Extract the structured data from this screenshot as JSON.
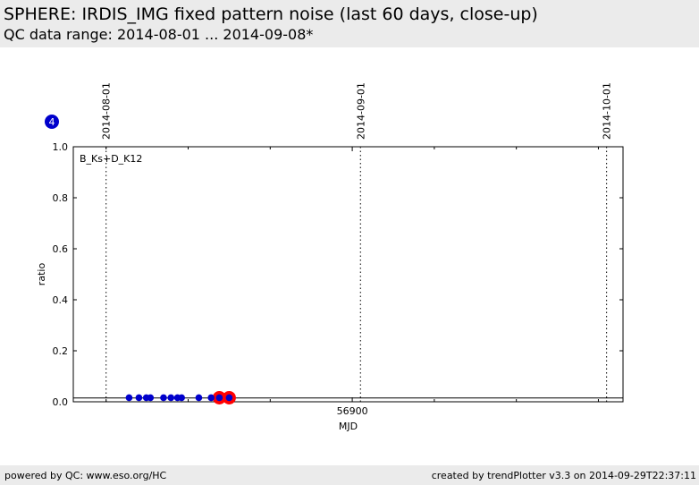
{
  "header": {
    "title": "SPHERE: IRDIS_IMG fixed pattern noise (last 60 days, close-up)",
    "subtitle": "QC data range: 2014-08-01 ... 2014-09-08*"
  },
  "footer": {
    "left": "powered by QC: www.eso.org/HC",
    "right": "created by trendPlotter v3.3 on 2014-09-29T22:37:11"
  },
  "colors": {
    "header_bg": "#ebebeb",
    "point": "#0000cc",
    "outlier": "#ff0000",
    "badge": "#0000cc"
  },
  "chart_data": {
    "type": "scatter",
    "panel_label": "B_Ks+D_K12",
    "badge": "4",
    "xlabel": "MJD",
    "ylabel": "ratio",
    "xlim": [
      56866,
      56933
    ],
    "ylim": [
      0.0,
      1.0
    ],
    "x_tick_labels": [
      {
        "value": 56900,
        "label": "56900"
      }
    ],
    "x_minor_ticks": [
      56870,
      56880,
      56890,
      56910,
      56920,
      56930
    ],
    "y_ticks": [
      {
        "value": 0.0,
        "label": "0.0"
      },
      {
        "value": 0.2,
        "label": "0.2"
      },
      {
        "value": 0.4,
        "label": "0.4"
      },
      {
        "value": 0.6,
        "label": "0.6"
      },
      {
        "value": 0.8,
        "label": "0.8"
      },
      {
        "value": 1.0,
        "label": "1.0"
      }
    ],
    "date_markers": [
      {
        "mjd": 56870,
        "label": "2014-08-01"
      },
      {
        "mjd": 56901,
        "label": "2014-09-01"
      },
      {
        "mjd": 56931,
        "label": "2014-10-01"
      }
    ],
    "reference_line": 0.015,
    "series": [
      {
        "values": [
          {
            "x": 56872.8,
            "y": 0.016
          },
          {
            "x": 56874.0,
            "y": 0.016
          },
          {
            "x": 56874.9,
            "y": 0.016
          },
          {
            "x": 56875.4,
            "y": 0.016
          },
          {
            "x": 56877.0,
            "y": 0.016
          },
          {
            "x": 56877.9,
            "y": 0.016
          },
          {
            "x": 56878.7,
            "y": 0.016
          },
          {
            "x": 56879.2,
            "y": 0.016
          },
          {
            "x": 56881.3,
            "y": 0.016
          },
          {
            "x": 56882.8,
            "y": 0.016
          },
          {
            "x": 56883.8,
            "y": 0.016
          },
          {
            "x": 56885.0,
            "y": 0.016
          }
        ]
      }
    ],
    "outliers": [
      {
        "x": 56883.8,
        "y": 0.016
      },
      {
        "x": 56885.0,
        "y": 0.016
      }
    ]
  }
}
